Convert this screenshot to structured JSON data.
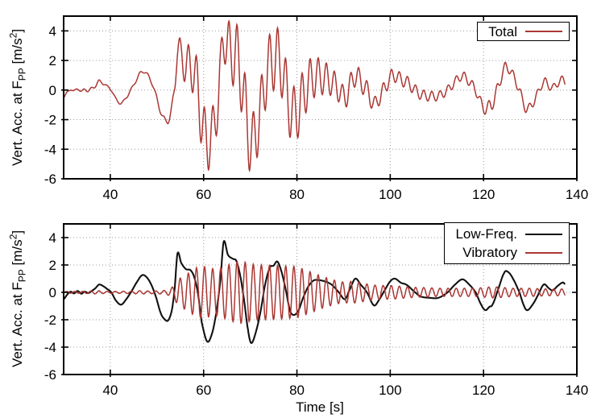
{
  "figure": {
    "background": "#ffffff",
    "axis_color": "#000000",
    "grid_color": "#9a9a9a"
  },
  "chart_data": {
    "type": "line",
    "title": "",
    "xlabel": "Time [s]",
    "ylabel": {
      "prefix": "Vert. Acc. at F",
      "sub": "PP",
      "mid": " [m/s",
      "sup": "2",
      "suffix": "]"
    },
    "xlim": [
      30,
      140
    ],
    "ylim": [
      -6,
      5
    ],
    "xticks": [
      40,
      60,
      80,
      100,
      120,
      140
    ],
    "yticks": [
      4,
      2,
      0,
      -2,
      -4,
      -6
    ],
    "grid": "dotted",
    "t_start": 30,
    "t_end": 137.5,
    "subplots": [
      {
        "id": "total-plot",
        "legend_position": "top-right",
        "legend": [
          {
            "label": "Total",
            "series": "total"
          }
        ]
      },
      {
        "id": "components-plot",
        "legend_position": "top-right",
        "legend": [
          {
            "label": "Low-Freq.",
            "series": "low_freq"
          },
          {
            "label": "Vibratory",
            "series": "vibratory"
          }
        ]
      }
    ],
    "series": {
      "low_freq": {
        "name": "Low-Freq.",
        "color": "#111111",
        "control_points": [
          [
            30,
            -0.5
          ],
          [
            30.8,
            -0.15
          ],
          [
            31.5,
            0.05
          ],
          [
            32.2,
            -0.08
          ],
          [
            33,
            0.1
          ],
          [
            33.8,
            -0.1
          ],
          [
            34.5,
            0.05
          ],
          [
            35.3,
            -0.05
          ],
          [
            36,
            0.1
          ],
          [
            36.8,
            0.3
          ],
          [
            37.6,
            0.57
          ],
          [
            38.5,
            0.45
          ],
          [
            39.3,
            0.25
          ],
          [
            40.2,
            0
          ],
          [
            41.2,
            -0.6
          ],
          [
            42.3,
            -0.9
          ],
          [
            43.3,
            -0.55
          ],
          [
            44.5,
            0.05
          ],
          [
            45.6,
            0.7
          ],
          [
            46.8,
            1.25
          ],
          [
            47.8,
            1.1
          ],
          [
            48.8,
            0.55
          ],
          [
            49.8,
            -0.35
          ],
          [
            50.8,
            -1.5
          ],
          [
            51.6,
            -1.95
          ],
          [
            52.4,
            -2.05
          ],
          [
            53.2,
            -1.3
          ],
          [
            53.8,
            0.3
          ],
          [
            54.4,
            2.85
          ],
          [
            55.2,
            2.15
          ],
          [
            56.2,
            1.7
          ],
          [
            57.2,
            1.62
          ],
          [
            58,
            1.1
          ],
          [
            58.8,
            -0.1
          ],
          [
            59.6,
            -2.2
          ],
          [
            60.8,
            -3.6
          ],
          [
            61.9,
            -2.9
          ],
          [
            62.8,
            -1.3
          ],
          [
            63.6,
            0.9
          ],
          [
            64.3,
            3.7
          ],
          [
            65.2,
            2.75
          ],
          [
            66.3,
            2.45
          ],
          [
            67,
            2.3
          ],
          [
            67.8,
            1.3
          ],
          [
            68.6,
            -0.4
          ],
          [
            69.5,
            -2.7
          ],
          [
            70.2,
            -3.7
          ],
          [
            71.2,
            -2.9
          ],
          [
            72.2,
            -1.4
          ],
          [
            73.2,
            0.6
          ],
          [
            74.2,
            1.8
          ],
          [
            75,
            1.95
          ],
          [
            75.8,
            2.25
          ],
          [
            76.7,
            1.5
          ],
          [
            77.6,
            0.2
          ],
          [
            78.5,
            -1.3
          ],
          [
            79.3,
            -1.65
          ],
          [
            80.3,
            -1.35
          ],
          [
            81.2,
            -0.5
          ],
          [
            82.3,
            0.35
          ],
          [
            83.5,
            0.85
          ],
          [
            84.5,
            0.9
          ],
          [
            86,
            0.8
          ],
          [
            87.5,
            0.55
          ],
          [
            89,
            0
          ],
          [
            90.3,
            -0.5
          ],
          [
            91.3,
            0.2
          ],
          [
            92.5,
            1
          ],
          [
            93.7,
            0.55
          ],
          [
            95,
            0
          ],
          [
            96.5,
            -0.95
          ],
          [
            97.7,
            -0.5
          ],
          [
            98.7,
            0.1
          ],
          [
            100,
            0.8
          ],
          [
            101,
            1
          ],
          [
            102.3,
            0.7
          ],
          [
            103.5,
            0.55
          ],
          [
            105,
            0.1
          ],
          [
            106.5,
            -0.3
          ],
          [
            108.5,
            -0.4
          ],
          [
            110.3,
            -0.4
          ],
          [
            112.3,
            0
          ],
          [
            114,
            0.6
          ],
          [
            115.5,
            0.95
          ],
          [
            117,
            0.55
          ],
          [
            118.3,
            0
          ],
          [
            119.5,
            -0.9
          ],
          [
            120.4,
            -1.3
          ],
          [
            121.3,
            -1.05
          ],
          [
            121.9,
            -0.9
          ],
          [
            123,
            0.1
          ],
          [
            124.4,
            1.4
          ],
          [
            125.2,
            1.5
          ],
          [
            126.3,
            1
          ],
          [
            127.7,
            0
          ],
          [
            128.7,
            -1
          ],
          [
            129.4,
            -1.3
          ],
          [
            130.5,
            -0.9
          ],
          [
            131.5,
            -0.3
          ],
          [
            132.9,
            0.57
          ],
          [
            134,
            0.3
          ],
          [
            134.8,
            0.15
          ],
          [
            136,
            0.5
          ],
          [
            137,
            0.72
          ],
          [
            137.5,
            0.6
          ]
        ]
      },
      "vibratory": {
        "name": "Vibratory",
        "color": "#aa3733",
        "period_s": 1.74,
        "phase_zero_t": 54.55,
        "envelope_points": [
          [
            30,
            0.06
          ],
          [
            34,
            0.07
          ],
          [
            36,
            0.1
          ],
          [
            37.5,
            0.12
          ],
          [
            39,
            0.07
          ],
          [
            41,
            0.07
          ],
          [
            43,
            0.08
          ],
          [
            45,
            0.1
          ],
          [
            46.5,
            0.12
          ],
          [
            48,
            0.1
          ],
          [
            50,
            0.1
          ],
          [
            52,
            0.15
          ],
          [
            53,
            0.3
          ],
          [
            53.8,
            0.55
          ],
          [
            54.5,
            0.95
          ],
          [
            55,
            1.05
          ],
          [
            56,
            1.25
          ],
          [
            57,
            1.45
          ],
          [
            58.5,
            1.8
          ],
          [
            60,
            1.9
          ],
          [
            61.5,
            1.75
          ],
          [
            63,
            1.7
          ],
          [
            64.5,
            1.9
          ],
          [
            66,
            2.1
          ],
          [
            67.5,
            2.3
          ],
          [
            69,
            2.2
          ],
          [
            70.5,
            2.05
          ],
          [
            72,
            2
          ],
          [
            73.5,
            2
          ],
          [
            75,
            2
          ],
          [
            76.5,
            1.95
          ],
          [
            78,
            1.9
          ],
          [
            79.5,
            1.9
          ],
          [
            81,
            1.75
          ],
          [
            82.5,
            1.55
          ],
          [
            84,
            1.35
          ],
          [
            85.5,
            1.15
          ],
          [
            87,
            1
          ],
          [
            88.5,
            0.85
          ],
          [
            90,
            0.75
          ],
          [
            91.5,
            0.8
          ],
          [
            93,
            0.75
          ],
          [
            94.5,
            0.65
          ],
          [
            96,
            0.55
          ],
          [
            97.5,
            0.5
          ],
          [
            99,
            0.5
          ],
          [
            100.5,
            0.5
          ],
          [
            102,
            0.45
          ],
          [
            104,
            0.4
          ],
          [
            106,
            0.35
          ],
          [
            108,
            0.35
          ],
          [
            110,
            0.3
          ],
          [
            112,
            0.3
          ],
          [
            114,
            0.3
          ],
          [
            116,
            0.3
          ],
          [
            118,
            0.3
          ],
          [
            120,
            0.35
          ],
          [
            121.5,
            0.4
          ],
          [
            123,
            0.4
          ],
          [
            124.5,
            0.35
          ],
          [
            126,
            0.3
          ],
          [
            128,
            0.3
          ],
          [
            130,
            0.3
          ],
          [
            132,
            0.27
          ],
          [
            134,
            0.25
          ],
          [
            136,
            0.25
          ],
          [
            137.5,
            0.25
          ]
        ]
      },
      "total": {
        "name": "Total",
        "color": "#aa3733",
        "definition": "low_freq + vibratory"
      }
    }
  }
}
